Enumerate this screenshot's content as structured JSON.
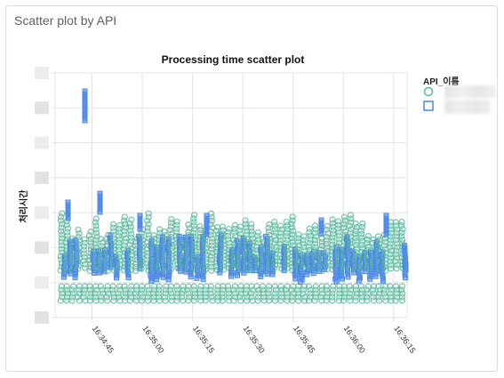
{
  "panel": {
    "title": "Scatter plot by API"
  },
  "chart_data": {
    "type": "scatter",
    "title": "Processing time scatter plot",
    "ylabel": "처리시간",
    "xlabel": "",
    "x_ticks": [
      "16:34:45",
      "16:35:00",
      "16:35:15",
      "16:35:30",
      "16:35:45",
      "16:36:00",
      "16:36:15"
    ],
    "x_range": [
      "16:34:34",
      "16:36:19"
    ],
    "y_tick_labels_visible": false,
    "legend": {
      "title": "API_이름",
      "placement": "right",
      "entries_obscured": true
    },
    "grid": true,
    "series": [
      {
        "marker": "circle",
        "color": "#5bb89c"
      },
      {
        "marker": "square",
        "color": "#4a87e8"
      }
    ],
    "note": "Series names and y-axis values are blurred in the original; series values not recoverable."
  }
}
